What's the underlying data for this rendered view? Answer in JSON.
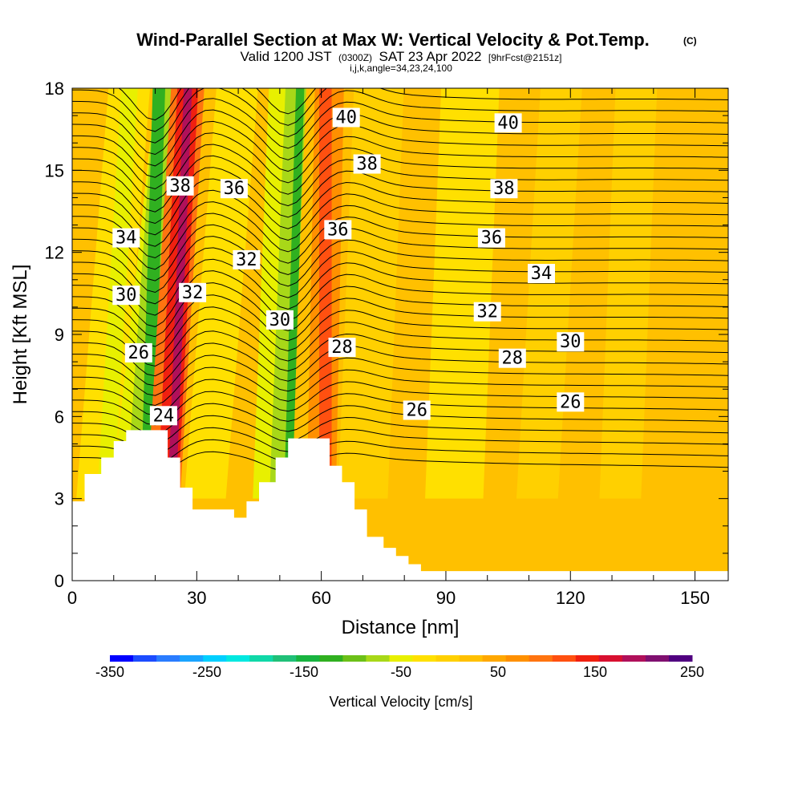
{
  "header": {
    "title": "Wind-Parallel Section at Max W: Vertical Velocity & Pot.Temp.",
    "title_mark": "(C)",
    "valid_prefix": "Valid 1200 JST",
    "valid_utc": "(0300Z)",
    "valid_date": "SAT 23 Apr 2022",
    "forecast": "[9hrFcst@2151z]",
    "indices": "i,j,k,angle=34,23,24,100"
  },
  "chart_data": {
    "type": "heatmap",
    "xlabel": "Distance [nm]",
    "ylabel": "Height [Kft MSL]",
    "xlim": [
      0,
      158
    ],
    "ylim": [
      0,
      18
    ],
    "xticks": [
      0,
      30,
      60,
      90,
      120,
      150
    ],
    "yticks": [
      0,
      3,
      6,
      9,
      12,
      15,
      18
    ],
    "colorbar": {
      "label": "Vertical Velocity [cm/s]",
      "ticks": [
        -350,
        -250,
        -150,
        -50,
        50,
        150,
        250
      ],
      "range": [
        -350,
        250
      ],
      "step": 20,
      "colors": [
        "#0000ff",
        "#1c4cff",
        "#2a7cff",
        "#1aa4ff",
        "#00cfff",
        "#00e8e0",
        "#10d8a8",
        "#20c078",
        "#18b440",
        "#30b020",
        "#6cc018",
        "#a8d818",
        "#e8f000",
        "#ffe000",
        "#ffd000",
        "#ffc000",
        "#ffa800",
        "#ff9000",
        "#ff7410",
        "#ff5010",
        "#f02010",
        "#d81030",
        "#b0105a",
        "#801070",
        "#500080"
      ]
    },
    "contours": {
      "variable": "Potential Temperature",
      "labels": [
        {
          "text": "40",
          "x": 66,
          "y": 16.9
        },
        {
          "text": "40",
          "x": 105,
          "y": 16.7
        },
        {
          "text": "38",
          "x": 26,
          "y": 14.4
        },
        {
          "text": "38",
          "x": 71,
          "y": 15.2
        },
        {
          "text": "38",
          "x": 104,
          "y": 14.3
        },
        {
          "text": "36",
          "x": 39,
          "y": 14.3
        },
        {
          "text": "36",
          "x": 64,
          "y": 12.8
        },
        {
          "text": "36",
          "x": 101,
          "y": 12.5
        },
        {
          "text": "34",
          "x": 13,
          "y": 12.5
        },
        {
          "text": "34",
          "x": 113,
          "y": 11.2
        },
        {
          "text": "32",
          "x": 42,
          "y": 11.7
        },
        {
          "text": "32",
          "x": 29,
          "y": 10.5
        },
        {
          "text": "32",
          "x": 100,
          "y": 9.8
        },
        {
          "text": "30",
          "x": 13,
          "y": 10.4
        },
        {
          "text": "30",
          "x": 50,
          "y": 9.5
        },
        {
          "text": "30",
          "x": 120,
          "y": 8.7
        },
        {
          "text": "28",
          "x": 65,
          "y": 8.5
        },
        {
          "text": "28",
          "x": 106,
          "y": 8.1
        },
        {
          "text": "26",
          "x": 16,
          "y": 8.3
        },
        {
          "text": "26",
          "x": 83,
          "y": 6.2
        },
        {
          "text": "26",
          "x": 120,
          "y": 6.5
        },
        {
          "text": "24",
          "x": 22,
          "y": 6.0
        }
      ]
    },
    "terrain_kft": [
      [
        0,
        2.9
      ],
      [
        3,
        2.9
      ],
      [
        3,
        3.9
      ],
      [
        7,
        3.9
      ],
      [
        7,
        4.5
      ],
      [
        10,
        4.5
      ],
      [
        10,
        5.1
      ],
      [
        13,
        5.1
      ],
      [
        13,
        5.5
      ],
      [
        23,
        5.5
      ],
      [
        23,
        4.5
      ],
      [
        26,
        4.5
      ],
      [
        26,
        3.4
      ],
      [
        29,
        3.4
      ],
      [
        29,
        2.6
      ],
      [
        39,
        2.6
      ],
      [
        39,
        2.3
      ],
      [
        42,
        2.3
      ],
      [
        42,
        2.9
      ],
      [
        45,
        2.9
      ],
      [
        45,
        3.6
      ],
      [
        49,
        3.6
      ],
      [
        49,
        4.5
      ],
      [
        52,
        4.5
      ],
      [
        52,
        5.2
      ],
      [
        62,
        5.2
      ],
      [
        62,
        4.2
      ],
      [
        65,
        4.2
      ],
      [
        65,
        3.6
      ],
      [
        68,
        3.6
      ],
      [
        68,
        2.6
      ],
      [
        71,
        2.6
      ],
      [
        71,
        1.6
      ],
      [
        75,
        1.6
      ],
      [
        75,
        1.2
      ],
      [
        78,
        1.2
      ],
      [
        78,
        0.9
      ],
      [
        81,
        0.9
      ],
      [
        81,
        0.6
      ],
      [
        84,
        0.6
      ],
      [
        84,
        0.35
      ],
      [
        158,
        0.35
      ]
    ]
  }
}
